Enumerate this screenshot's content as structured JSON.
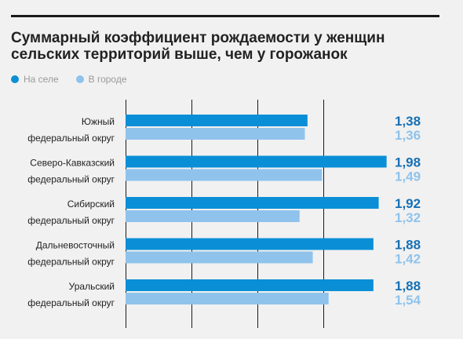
{
  "title": "Суммарный коэффициент рождаемости у женщин сельских территорий выше, чем у горожанок",
  "legend": {
    "rural_label": "На селе",
    "urban_label": "В городе"
  },
  "colors": {
    "rural": "#0a8fd6",
    "urban": "#8fc3ec",
    "rural_value_text": "#1670b5",
    "urban_value_text": "#8fc3ec",
    "grid": "#1a1a1a"
  },
  "chart_data": {
    "type": "bar",
    "orientation": "horizontal",
    "title": "Суммарный коэффициент рождаемости у женщин сельских территорий выше, чем у горожанок",
    "xlim": [
      0,
      2.0
    ],
    "grid": true,
    "legend_position": "top-left",
    "categories": [
      [
        "Южный",
        "федеральный округ"
      ],
      [
        "Северо-Кавказский",
        "федеральный округ"
      ],
      [
        "Сибирский",
        "федеральный округ"
      ],
      [
        "Дальневосточный",
        "федеральный округ"
      ],
      [
        "Уральский",
        "федеральный округ"
      ]
    ],
    "series": [
      {
        "name": "На селе",
        "values": [
          1.38,
          1.98,
          1.92,
          1.88,
          1.88
        ],
        "value_labels": [
          "1,38",
          "1,98",
          "1,92",
          "1,88",
          "1,88"
        ]
      },
      {
        "name": "В городе",
        "values": [
          1.36,
          1.49,
          1.32,
          1.42,
          1.54
        ],
        "value_labels": [
          "1,36",
          "1,49",
          "1,32",
          "1,42",
          "1,54"
        ]
      }
    ]
  }
}
